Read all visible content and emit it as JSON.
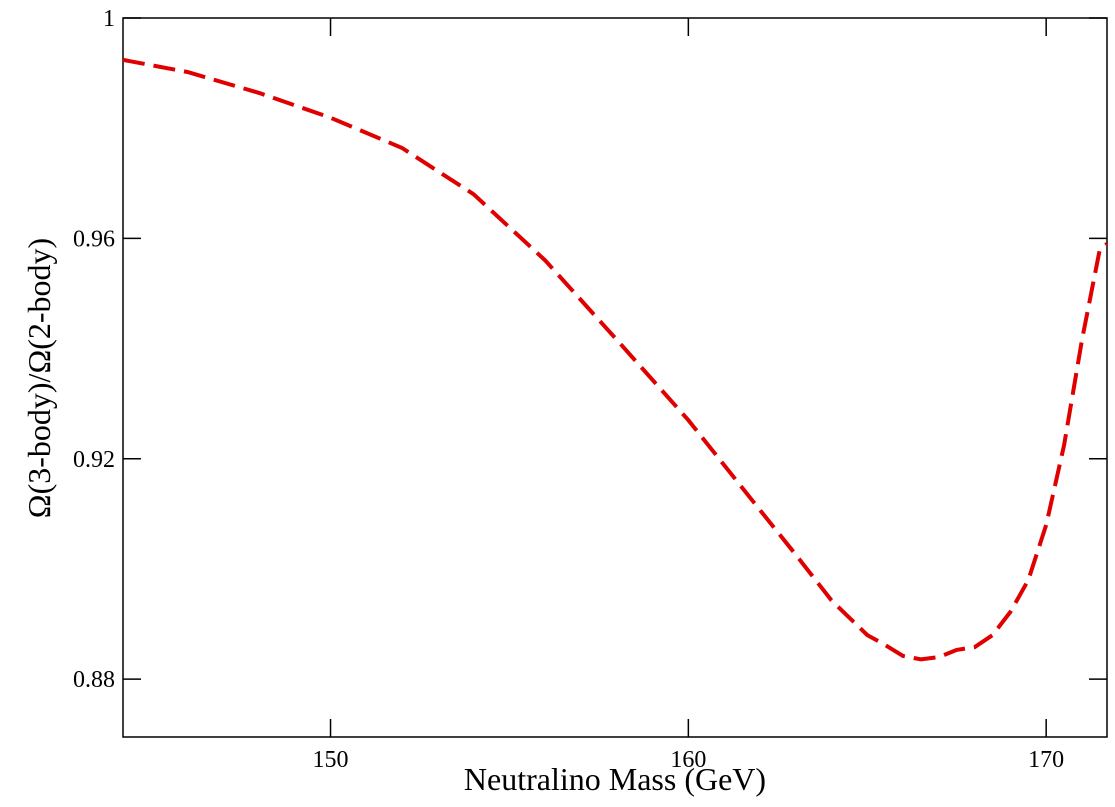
{
  "chart_data": {
    "type": "line",
    "xlabel": "Neutralino Mass (GeV)",
    "ylabel": "Ω(3-body)/Ω(2-body)",
    "xlim": [
      144.2,
      171.7
    ],
    "xticks": [
      150,
      160,
      170
    ],
    "ylim": [
      0.8695,
      1
    ],
    "yticks": [
      0.88,
      0.92,
      0.96,
      1
    ],
    "series": [
      {
        "color": "#e00000",
        "dash": true,
        "x": [
          144.2,
          146,
          148,
          150,
          152,
          154,
          156,
          158,
          160,
          162,
          163,
          164,
          165,
          165.5,
          166,
          166.5,
          167,
          167.5,
          168,
          168.5,
          169,
          169.5,
          170,
          170.5,
          171,
          171.5,
          171.7
        ],
        "values": [
          0.9924,
          0.9902,
          0.9864,
          0.9819,
          0.9764,
          0.968,
          0.956,
          0.9416,
          0.927,
          0.9107,
          0.9026,
          0.8943,
          0.888,
          0.8862,
          0.8842,
          0.8836,
          0.884,
          0.8853,
          0.8858,
          0.888,
          0.8922,
          0.898,
          0.908,
          0.9225,
          0.9416,
          0.958,
          0.959
        ]
      }
    ]
  }
}
